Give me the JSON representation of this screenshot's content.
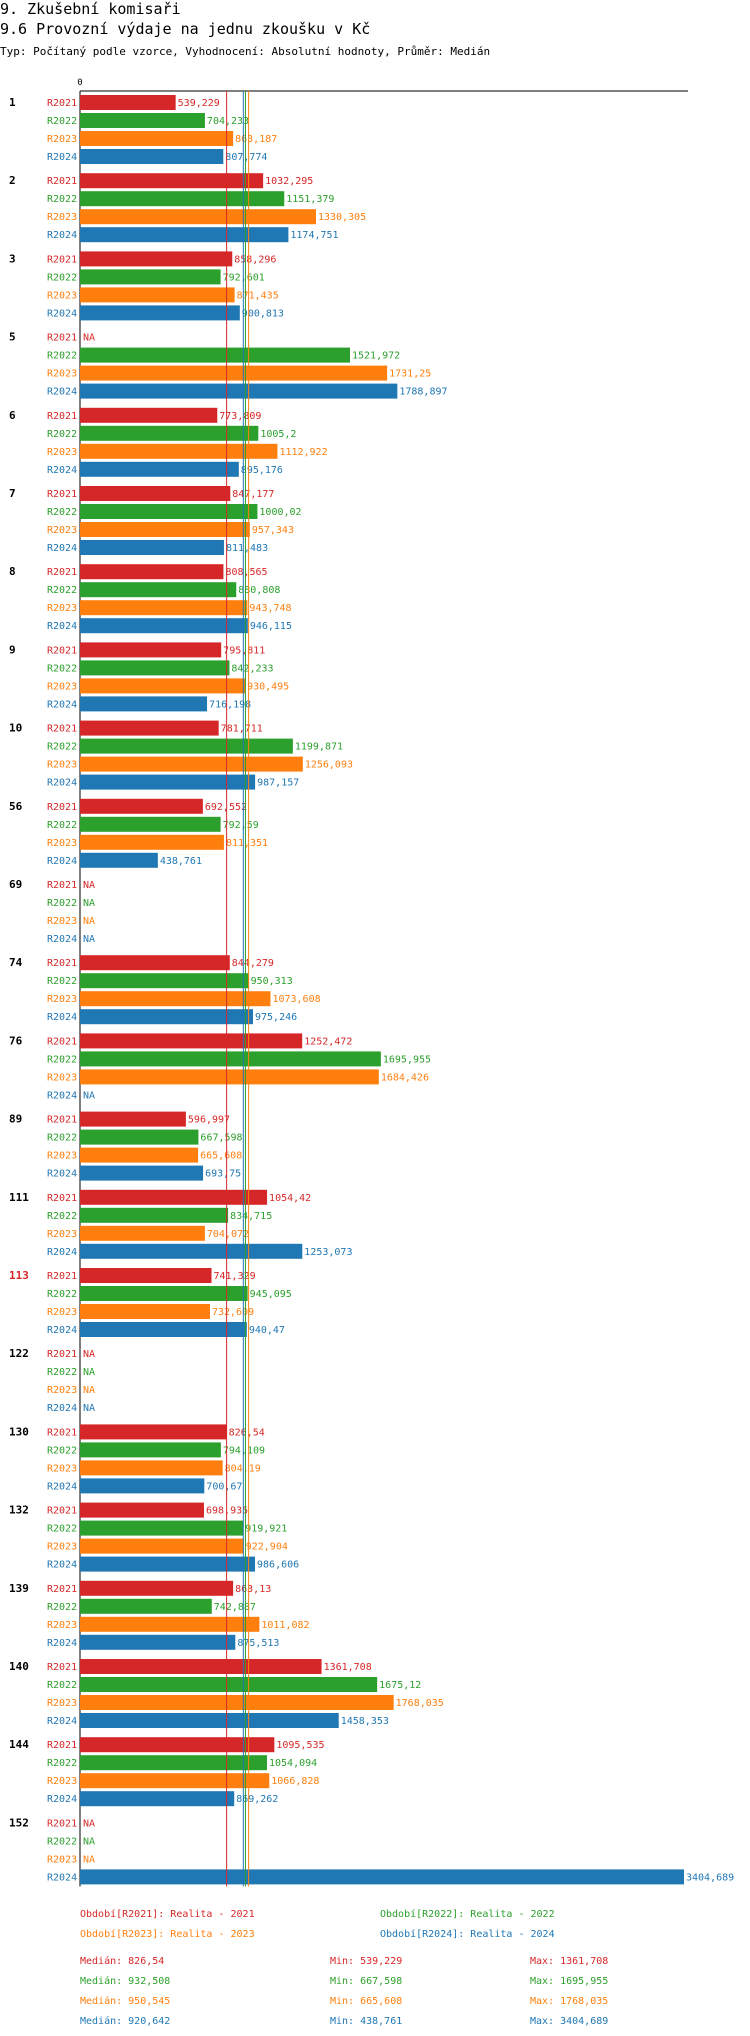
{
  "header": {
    "section": "9. Zkušební komisaři",
    "title": "9.6 Provozní výdaje na jednu zkoušku v Kč",
    "subtitle": "Typ: Počítaný podle vzorce, Vyhodnocení: Absolutní hodnoty, Průměr: Medián"
  },
  "colors": {
    "R2021": "#d62728",
    "R2022": "#2ca02c",
    "R2023": "#ff7f0e",
    "R2024": "#1f77b4",
    "highlight": "#d62728"
  },
  "chart_data": {
    "type": "bar",
    "orientation": "horizontal",
    "title": "9.6 Provozní výdaje na jednu zkoušku v Kč",
    "axis_zero_label": "0",
    "xlim": [
      0,
      3404.689
    ],
    "na_label": "NA",
    "series_names": [
      "R2021",
      "R2022",
      "R2023",
      "R2024"
    ],
    "groups": [
      {
        "label": "1",
        "highlight": false,
        "values": [
          539.229,
          704.233,
          863.187,
          807.774
        ],
        "labels": [
          "539,229",
          "704,233",
          "863,187",
          "807,774"
        ]
      },
      {
        "label": "2",
        "highlight": false,
        "values": [
          1032.295,
          1151.379,
          1330.305,
          1174.751
        ],
        "labels": [
          "1032,295",
          "1151,379",
          "1330,305",
          "1174,751"
        ]
      },
      {
        "label": "3",
        "highlight": false,
        "values": [
          858.296,
          792.601,
          871.435,
          900.813
        ],
        "labels": [
          "858,296",
          "792,601",
          "871,435",
          "900,813"
        ]
      },
      {
        "label": "5",
        "highlight": false,
        "values": [
          null,
          1521.972,
          1731.25,
          1788.897
        ],
        "labels": [
          "NA",
          "1521,972",
          "1731,25",
          "1788,897"
        ]
      },
      {
        "label": "6",
        "highlight": false,
        "values": [
          773.809,
          1005.2,
          1112.922,
          895.176
        ],
        "labels": [
          "773,809",
          "1005,2",
          "1112,922",
          "895,176"
        ]
      },
      {
        "label": "7",
        "highlight": false,
        "values": [
          847.177,
          1000.02,
          957.343,
          811.483
        ],
        "labels": [
          "847,177",
          "1000,02",
          "957,343",
          "811,483"
        ]
      },
      {
        "label": "8",
        "highlight": false,
        "values": [
          808.565,
          880.808,
          943.748,
          946.115
        ],
        "labels": [
          "808,565",
          "880,808",
          "943,748",
          "946,115"
        ]
      },
      {
        "label": "9",
        "highlight": false,
        "values": [
          795.811,
          842.233,
          930.495,
          716.198
        ],
        "labels": [
          "795,811",
          "842,233",
          "930,495",
          "716,198"
        ]
      },
      {
        "label": "10",
        "highlight": false,
        "values": [
          781.711,
          1199.871,
          1256.093,
          987.157
        ],
        "labels": [
          "781,711",
          "1199,871",
          "1256,093",
          "987,157"
        ]
      },
      {
        "label": "56",
        "highlight": false,
        "values": [
          692.552,
          792.59,
          811.351,
          438.761
        ],
        "labels": [
          "692,552",
          "792,59",
          "811,351",
          "438,761"
        ]
      },
      {
        "label": "69",
        "highlight": false,
        "values": [
          null,
          null,
          null,
          null
        ],
        "labels": [
          "NA",
          "NA",
          "NA",
          "NA"
        ]
      },
      {
        "label": "74",
        "highlight": false,
        "values": [
          844.279,
          950.313,
          1073.608,
          975.246
        ],
        "labels": [
          "844,279",
          "950,313",
          "1073,608",
          "975,246"
        ]
      },
      {
        "label": "76",
        "highlight": false,
        "values": [
          1252.472,
          1695.955,
          1684.426,
          null
        ],
        "labels": [
          "1252,472",
          "1695,955",
          "1684,426",
          "NA"
        ]
      },
      {
        "label": "89",
        "highlight": false,
        "values": [
          596.997,
          667.598,
          665.608,
          693.75
        ],
        "labels": [
          "596,997",
          "667,598",
          "665,608",
          "693,75"
        ]
      },
      {
        "label": "111",
        "highlight": false,
        "values": [
          1054.42,
          834.715,
          704.072,
          1253.073
        ],
        "labels": [
          "1054,42",
          "834,715",
          "704,072",
          "1253,073"
        ]
      },
      {
        "label": "113",
        "highlight": true,
        "values": [
          741.329,
          945.095,
          732.609,
          940.47
        ],
        "labels": [
          "741,329",
          "945,095",
          "732,609",
          "940,47"
        ]
      },
      {
        "label": "122",
        "highlight": false,
        "values": [
          null,
          null,
          null,
          null
        ],
        "labels": [
          "NA",
          "NA",
          "NA",
          "NA"
        ]
      },
      {
        "label": "130",
        "highlight": false,
        "values": [
          826.54,
          794.109,
          804.19,
          700.67
        ],
        "labels": [
          "826,54",
          "794,109",
          "804,19",
          "700,67"
        ]
      },
      {
        "label": "132",
        "highlight": false,
        "values": [
          698.935,
          919.921,
          922.904,
          986.606
        ],
        "labels": [
          "698,935",
          "919,921",
          "922,904",
          "986,606"
        ]
      },
      {
        "label": "139",
        "highlight": false,
        "values": [
          863.13,
          742.887,
          1011.082,
          875.513
        ],
        "labels": [
          "863,13",
          "742,887",
          "1011,082",
          "875,513"
        ]
      },
      {
        "label": "140",
        "highlight": false,
        "values": [
          1361.708,
          1675.12,
          1768.035,
          1458.353
        ],
        "labels": [
          "1361,708",
          "1675,12",
          "1768,035",
          "1458,353"
        ]
      },
      {
        "label": "144",
        "highlight": false,
        "values": [
          1095.535,
          1054.094,
          1066.828,
          869.262
        ],
        "labels": [
          "1095,535",
          "1054,094",
          "1066,828",
          "869,262"
        ]
      },
      {
        "label": "152",
        "highlight": false,
        "values": [
          null,
          null,
          null,
          3404.689
        ],
        "labels": [
          "NA",
          "NA",
          "NA",
          "3404,689"
        ]
      }
    ],
    "medians": [
      826.54,
      932.508,
      950.545,
      920.642
    ],
    "legend": [
      "Období[R2021]: Realita - 2021",
      "Období[R2022]: Realita - 2022",
      "Období[R2023]: Realita - 2023",
      "Období[R2024]: Realita - 2024"
    ],
    "stats": [
      {
        "median": "Medián: 826,54",
        "min": "Min: 539,229",
        "max": "Max: 1361,708"
      },
      {
        "median": "Medián: 932,508",
        "min": "Min: 667,598",
        "max": "Max: 1695,955"
      },
      {
        "median": "Medián: 950,545",
        "min": "Min: 665,608",
        "max": "Max: 1768,035"
      },
      {
        "median": "Medián: 920,642",
        "min": "Min: 438,761",
        "max": "Max: 3404,689"
      }
    ]
  }
}
